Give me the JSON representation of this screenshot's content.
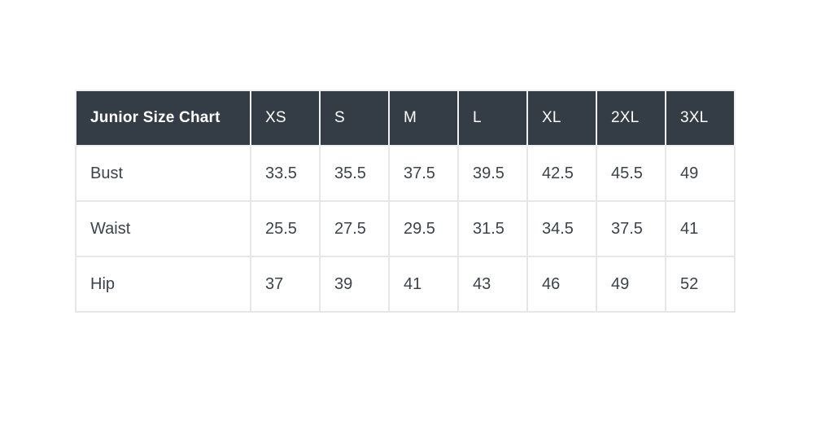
{
  "chart_data": {
    "type": "table",
    "title": "Junior Size Chart",
    "columns": [
      "XS",
      "S",
      "M",
      "L",
      "XL",
      "2XL",
      "3XL"
    ],
    "rows": [
      {
        "label": "Bust",
        "values": [
          "33.5",
          "35.5",
          "37.5",
          "39.5",
          "42.5",
          "45.5",
          "49"
        ]
      },
      {
        "label": "Waist",
        "values": [
          "25.5",
          "27.5",
          "29.5",
          "31.5",
          "34.5",
          "37.5",
          "41"
        ]
      },
      {
        "label": "Hip",
        "values": [
          "37",
          "39",
          "41",
          "43",
          "46",
          "49",
          "52"
        ]
      }
    ],
    "layout_hints": {
      "header_position": "top-row",
      "first_column_is_row_labels": true,
      "grid": true
    }
  },
  "colors": {
    "header_bg": "#343d46",
    "header_text": "#ffffff",
    "body_text": "#3c434a",
    "border": "#e7e7e7",
    "page_bg": "#ffffff"
  }
}
